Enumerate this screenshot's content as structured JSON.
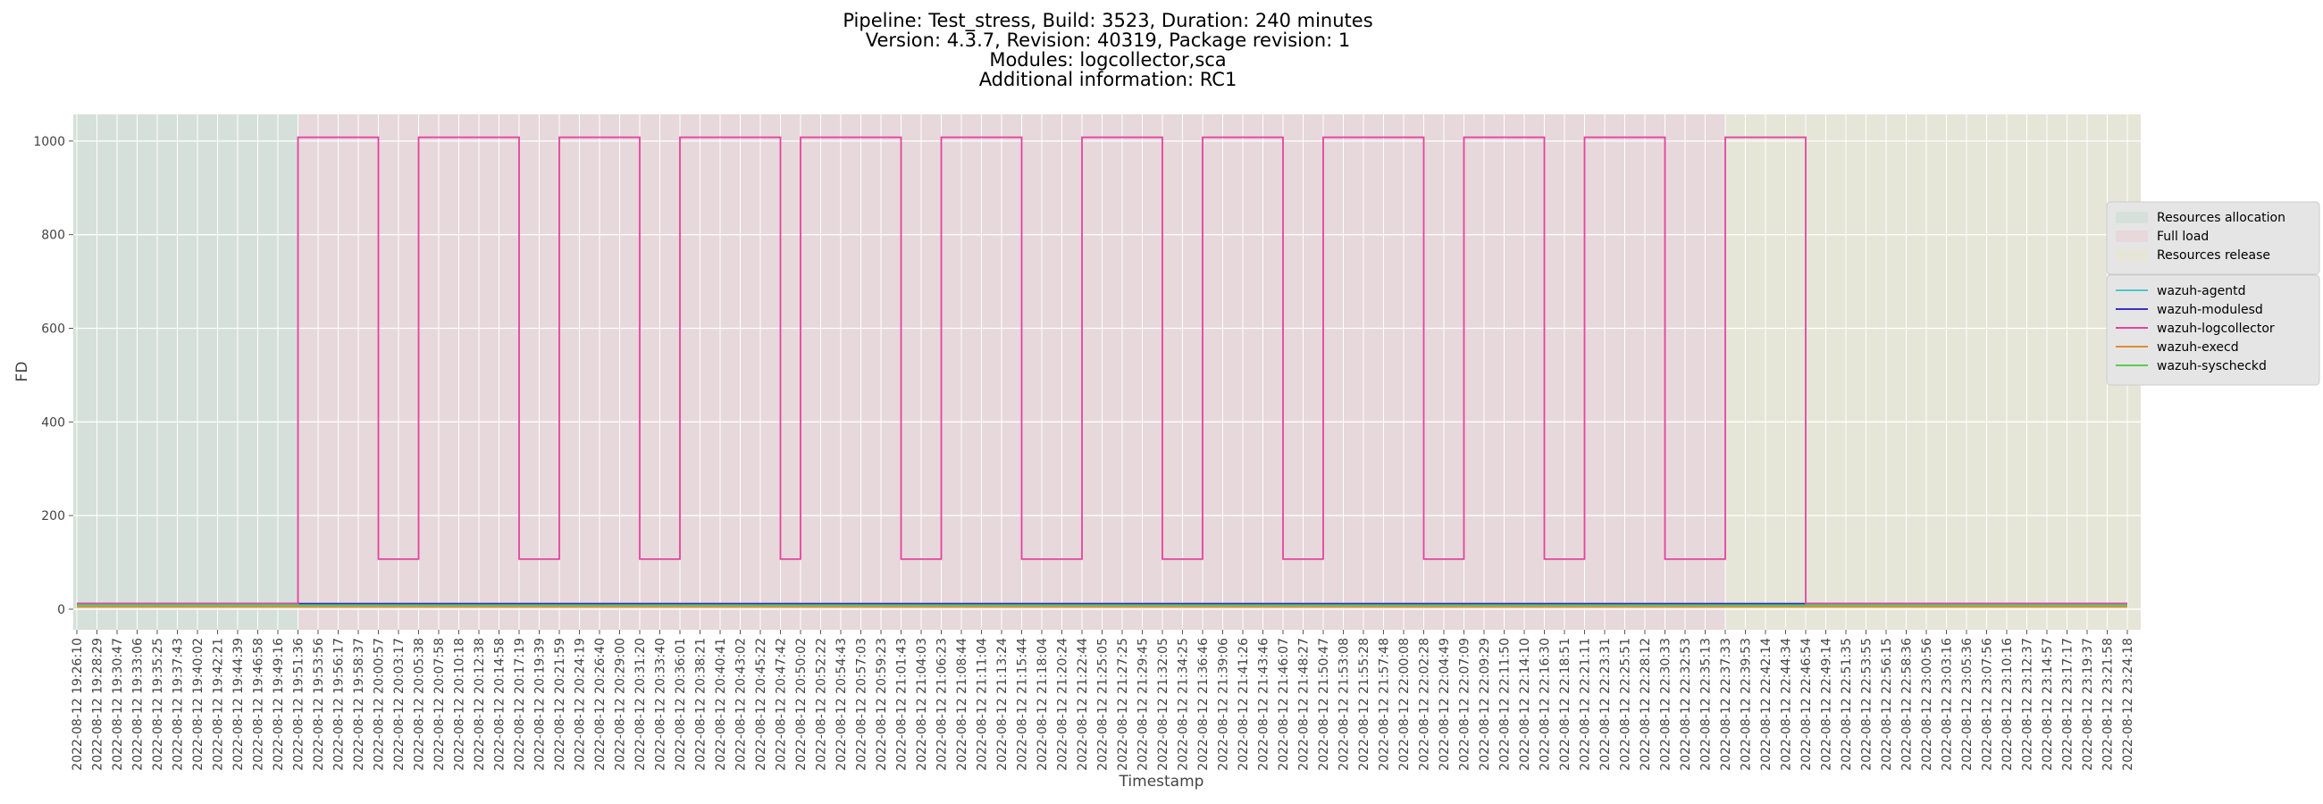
{
  "chart_data": {
    "type": "line",
    "step": true,
    "title_lines": [
      "Pipeline: Test_stress, Build: 3523, Duration: 240 minutes",
      "Version: 4.3.7, Revision: 40319, Package revision: 1",
      "Modules: logcollector,sca",
      "Additional information: RC1"
    ],
    "x_label": "Timestamp",
    "y_label": "FD",
    "x": [
      "2022-08-12 19:26:10",
      "2022-08-12 19:28:29",
      "2022-08-12 19:30:47",
      "2022-08-12 19:33:06",
      "2022-08-12 19:35:25",
      "2022-08-12 19:37:43",
      "2022-08-12 19:40:02",
      "2022-08-12 19:42:21",
      "2022-08-12 19:44:39",
      "2022-08-12 19:46:58",
      "2022-08-12 19:49:16",
      "2022-08-12 19:51:36",
      "2022-08-12 19:53:56",
      "2022-08-12 19:56:17",
      "2022-08-12 19:58:37",
      "2022-08-12 20:00:57",
      "2022-08-12 20:03:17",
      "2022-08-12 20:05:38",
      "2022-08-12 20:07:58",
      "2022-08-12 20:10:18",
      "2022-08-12 20:12:38",
      "2022-08-12 20:14:58",
      "2022-08-12 20:17:19",
      "2022-08-12 20:19:39",
      "2022-08-12 20:21:59",
      "2022-08-12 20:24:19",
      "2022-08-12 20:26:40",
      "2022-08-12 20:29:00",
      "2022-08-12 20:31:20",
      "2022-08-12 20:33:40",
      "2022-08-12 20:36:01",
      "2022-08-12 20:38:21",
      "2022-08-12 20:40:41",
      "2022-08-12 20:43:02",
      "2022-08-12 20:45:22",
      "2022-08-12 20:47:42",
      "2022-08-12 20:50:02",
      "2022-08-12 20:52:22",
      "2022-08-12 20:54:43",
      "2022-08-12 20:57:03",
      "2022-08-12 20:59:23",
      "2022-08-12 21:01:43",
      "2022-08-12 21:04:03",
      "2022-08-12 21:06:23",
      "2022-08-12 21:08:44",
      "2022-08-12 21:11:04",
      "2022-08-12 21:13:24",
      "2022-08-12 21:15:44",
      "2022-08-12 21:18:04",
      "2022-08-12 21:20:24",
      "2022-08-12 21:22:44",
      "2022-08-12 21:25:05",
      "2022-08-12 21:27:25",
      "2022-08-12 21:29:45",
      "2022-08-12 21:32:05",
      "2022-08-12 21:34:25",
      "2022-08-12 21:36:46",
      "2022-08-12 21:39:06",
      "2022-08-12 21:41:26",
      "2022-08-12 21:43:46",
      "2022-08-12 21:46:07",
      "2022-08-12 21:48:27",
      "2022-08-12 21:50:47",
      "2022-08-12 21:53:08",
      "2022-08-12 21:55:28",
      "2022-08-12 21:57:48",
      "2022-08-12 22:00:08",
      "2022-08-12 22:02:28",
      "2022-08-12 22:04:49",
      "2022-08-12 22:07:09",
      "2022-08-12 22:09:29",
      "2022-08-12 22:11:50",
      "2022-08-12 22:14:10",
      "2022-08-12 22:16:30",
      "2022-08-12 22:18:51",
      "2022-08-12 22:21:11",
      "2022-08-12 22:23:31",
      "2022-08-12 22:25:51",
      "2022-08-12 22:28:12",
      "2022-08-12 22:30:33",
      "2022-08-12 22:32:53",
      "2022-08-12 22:35:13",
      "2022-08-12 22:37:33",
      "2022-08-12 22:39:53",
      "2022-08-12 22:42:14",
      "2022-08-12 22:44:34",
      "2022-08-12 22:46:54",
      "2022-08-12 22:49:14",
      "2022-08-12 22:51:35",
      "2022-08-12 22:53:55",
      "2022-08-12 22:56:15",
      "2022-08-12 22:58:36",
      "2022-08-12 23:00:56",
      "2022-08-12 23:03:16",
      "2022-08-12 23:05:36",
      "2022-08-12 23:07:56",
      "2022-08-12 23:10:16",
      "2022-08-12 23:12:37",
      "2022-08-12 23:14:57",
      "2022-08-12 23:17:17",
      "2022-08-12 23:19:37",
      "2022-08-12 23:21:58",
      "2022-08-12 23:24:18"
    ],
    "phases": [
      {
        "name": "Resources allocation",
        "color": "#d6e0da",
        "start": "2022-08-12 19:26:10",
        "end": "2022-08-12 19:51:36"
      },
      {
        "name": "Full load",
        "color": "#e7d8db",
        "start": "2022-08-12 19:51:36",
        "end": "2022-08-12 22:37:33"
      },
      {
        "name": "Resources release",
        "color": "#e6e6d8",
        "start": "2022-08-12 22:37:33",
        "end": "2022-08-12 23:24:18"
      }
    ],
    "series": [
      {
        "name": "wazuh-agentd",
        "color": "#4cc7c3",
        "values": [
          10,
          10,
          10,
          10,
          10,
          10,
          10,
          10,
          10,
          10,
          10,
          10,
          10,
          10,
          10,
          10,
          10,
          10,
          10,
          10,
          10,
          10,
          10,
          10,
          10,
          10,
          10,
          10,
          10,
          10,
          10,
          10,
          10,
          10,
          10,
          10,
          10,
          10,
          10,
          10,
          10,
          10,
          10,
          10,
          10,
          10,
          10,
          10,
          10,
          10,
          10,
          10,
          10,
          10,
          10,
          10,
          10,
          10,
          10,
          10,
          10,
          10,
          10,
          10,
          10,
          10,
          10,
          10,
          10,
          10,
          10,
          10,
          10,
          10,
          10,
          10,
          10,
          10,
          10,
          10,
          10,
          10,
          10,
          10,
          10,
          10,
          10,
          10,
          10,
          10,
          10,
          10,
          10,
          10,
          10,
          10,
          10,
          10,
          10,
          10,
          10,
          10,
          10
        ]
      },
      {
        "name": "wazuh-modulesd",
        "color": "#3a2fc8",
        "values": [
          12,
          12,
          12,
          12,
          12,
          12,
          12,
          12,
          12,
          12,
          12,
          12,
          12,
          12,
          12,
          12,
          12,
          12,
          12,
          12,
          12,
          12,
          12,
          12,
          12,
          12,
          12,
          12,
          12,
          12,
          12,
          12,
          12,
          12,
          12,
          12,
          12,
          12,
          12,
          12,
          12,
          12,
          12,
          12,
          12,
          12,
          12,
          12,
          12,
          12,
          12,
          12,
          12,
          12,
          12,
          12,
          12,
          12,
          12,
          12,
          12,
          12,
          12,
          12,
          12,
          12,
          12,
          12,
          12,
          12,
          12,
          12,
          12,
          12,
          12,
          12,
          12,
          12,
          12,
          12,
          12,
          12,
          12,
          12,
          12,
          12,
          12,
          12,
          12,
          12,
          12,
          12,
          12,
          12,
          12,
          12,
          12,
          12,
          12,
          12,
          12,
          12,
          12
        ]
      },
      {
        "name": "wazuh-logcollector",
        "color": "#e5449f",
        "values": [
          12,
          12,
          12,
          12,
          12,
          12,
          12,
          12,
          12,
          12,
          12,
          1008,
          1008,
          1008,
          1008,
          107,
          107,
          1008,
          1008,
          1008,
          1008,
          1008,
          107,
          107,
          1008,
          1008,
          1008,
          1008,
          107,
          107,
          1008,
          1008,
          1008,
          1008,
          1008,
          107,
          1008,
          1008,
          1008,
          1008,
          1008,
          107,
          107,
          1008,
          1008,
          1008,
          1008,
          107,
          107,
          107,
          1008,
          1008,
          1008,
          1008,
          107,
          107,
          1008,
          1008,
          1008,
          1008,
          107,
          107,
          1008,
          1008,
          1008,
          1008,
          1008,
          107,
          107,
          1008,
          1008,
          1008,
          1008,
          107,
          107,
          1008,
          1008,
          1008,
          1008,
          107,
          107,
          107,
          1008,
          1008,
          1008,
          1008,
          12,
          12,
          12,
          12,
          12,
          12,
          12,
          12,
          12,
          12,
          12,
          12,
          12,
          12,
          12,
          12,
          12
        ]
      },
      {
        "name": "wazuh-execd",
        "color": "#e08d2c",
        "values": [
          5,
          5,
          5,
          5,
          5,
          5,
          5,
          5,
          5,
          5,
          5,
          5,
          5,
          5,
          5,
          5,
          5,
          5,
          5,
          5,
          5,
          5,
          5,
          5,
          5,
          5,
          5,
          5,
          5,
          5,
          5,
          5,
          5,
          5,
          5,
          5,
          5,
          5,
          5,
          5,
          5,
          5,
          5,
          5,
          5,
          5,
          5,
          5,
          5,
          5,
          5,
          5,
          5,
          5,
          5,
          5,
          5,
          5,
          5,
          5,
          5,
          5,
          5,
          5,
          5,
          5,
          5,
          5,
          5,
          5,
          5,
          5,
          5,
          5,
          5,
          5,
          5,
          5,
          5,
          5,
          5,
          5,
          5,
          5,
          5,
          5,
          5,
          5,
          5,
          5,
          5,
          5,
          5,
          5,
          5,
          5,
          5,
          5,
          5,
          5,
          5,
          5,
          5
        ]
      },
      {
        "name": "wazuh-syscheckd",
        "color": "#5ccb55",
        "values": [
          8,
          8,
          8,
          8,
          8,
          8,
          8,
          8,
          8,
          8,
          8,
          8,
          8,
          8,
          8,
          8,
          8,
          8,
          8,
          8,
          8,
          8,
          8,
          8,
          8,
          8,
          8,
          8,
          8,
          8,
          8,
          8,
          8,
          8,
          8,
          8,
          8,
          8,
          8,
          8,
          8,
          8,
          8,
          8,
          8,
          8,
          8,
          8,
          8,
          8,
          8,
          8,
          8,
          8,
          8,
          8,
          8,
          8,
          8,
          8,
          8,
          8,
          8,
          8,
          8,
          8,
          8,
          8,
          8,
          8,
          8,
          8,
          8,
          8,
          8,
          8,
          8,
          8,
          8,
          8,
          8,
          8,
          8,
          8,
          8,
          8,
          8,
          8,
          8,
          8,
          8,
          8,
          8,
          8,
          8,
          8,
          8,
          8,
          8,
          8,
          8,
          8,
          8
        ]
      }
    ],
    "ylim": [
      -44,
      1057
    ],
    "yticks": [
      0,
      200,
      400,
      600,
      800,
      1000
    ],
    "grid": true,
    "legend": "right"
  }
}
